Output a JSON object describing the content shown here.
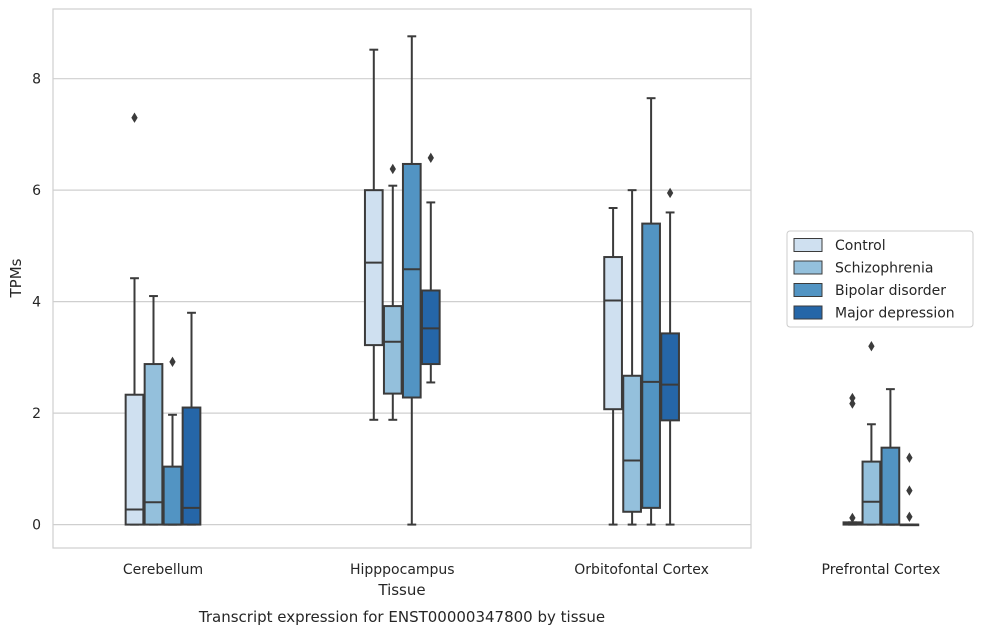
{
  "caption": "Transcript expression for ENST00000347800 by tissue",
  "colors": {
    "Control": "#cfe0f0",
    "Schizophrenia": "#94c0dc",
    "Bipolar disorder": "#5294c3",
    "Major depression": "#2566a8",
    "line": "#3b3b3b",
    "grid": "#cfcfcf",
    "frame": "#cfcfcf"
  },
  "chart_data": {
    "type": "box",
    "xlabel": "Tissue",
    "ylabel": "TPMs",
    "ylim": [
      -0.42,
      9.25
    ],
    "yticks": [
      0,
      2,
      4,
      6,
      8
    ],
    "grid": true,
    "legend_position": "right",
    "categories": [
      "Cerebellum",
      "Hipppocampus",
      "Orbitofontal Cortex",
      "Prefrontal Cortex"
    ],
    "series": [
      {
        "name": "Control",
        "boxes": [
          {
            "whislo": 0.0,
            "q1": 0.0,
            "med": 0.27,
            "q3": 2.33,
            "whishi": 4.42,
            "fliers": [
              7.3
            ]
          },
          {
            "whislo": 1.88,
            "q1": 3.22,
            "med": 4.7,
            "q3": 6.0,
            "whishi": 8.52,
            "fliers": []
          },
          {
            "whislo": 0.0,
            "q1": 2.07,
            "med": 4.02,
            "q3": 4.8,
            "whishi": 5.68,
            "fliers": []
          },
          {
            "whislo": 0.0,
            "q1": 0.0,
            "med": 0.02,
            "q3": 0.04,
            "whishi": 0.04,
            "fliers": [
              0.12,
              2.17,
              2.27
            ]
          }
        ]
      },
      {
        "name": "Schizophrenia",
        "boxes": [
          {
            "whislo": 0.0,
            "q1": 0.0,
            "med": 0.4,
            "q3": 2.88,
            "whishi": 4.1,
            "fliers": []
          },
          {
            "whislo": 1.88,
            "q1": 2.35,
            "med": 3.28,
            "q3": 3.92,
            "whishi": 6.08,
            "fliers": [
              6.38
            ]
          },
          {
            "whislo": 0.0,
            "q1": 0.23,
            "med": 1.15,
            "q3": 2.67,
            "whishi": 6.0,
            "fliers": []
          },
          {
            "whislo": 0.0,
            "q1": 0.0,
            "med": 0.41,
            "q3": 1.13,
            "whishi": 1.8,
            "fliers": [
              3.2
            ]
          }
        ]
      },
      {
        "name": "Bipolar disorder",
        "boxes": [
          {
            "whislo": 0.0,
            "q1": 0.0,
            "med": 0.0,
            "q3": 1.04,
            "whishi": 1.97,
            "fliers": [
              2.92
            ]
          },
          {
            "whislo": 0.0,
            "q1": 2.28,
            "med": 4.58,
            "q3": 6.47,
            "whishi": 8.76,
            "fliers": []
          },
          {
            "whislo": 0.0,
            "q1": 0.3,
            "med": 2.56,
            "q3": 5.4,
            "whishi": 7.65,
            "fliers": []
          },
          {
            "whislo": 0.0,
            "q1": 0.0,
            "med": 0.0,
            "q3": 1.38,
            "whishi": 2.43,
            "fliers": []
          }
        ]
      },
      {
        "name": "Major depression",
        "boxes": [
          {
            "whislo": 0.0,
            "q1": 0.0,
            "med": 0.3,
            "q3": 2.1,
            "whishi": 3.8,
            "fliers": []
          },
          {
            "whislo": 2.55,
            "q1": 2.88,
            "med": 3.52,
            "q3": 4.2,
            "whishi": 5.78,
            "fliers": [
              6.58
            ]
          },
          {
            "whislo": 0.0,
            "q1": 1.87,
            "med": 2.51,
            "q3": 3.43,
            "whishi": 5.6,
            "fliers": [
              5.95
            ]
          },
          {
            "whislo": 0.0,
            "q1": 0.0,
            "med": 0.0,
            "q3": 0.0,
            "whishi": 0.0,
            "fliers": [
              0.14,
              0.61,
              1.2
            ]
          }
        ]
      }
    ]
  }
}
